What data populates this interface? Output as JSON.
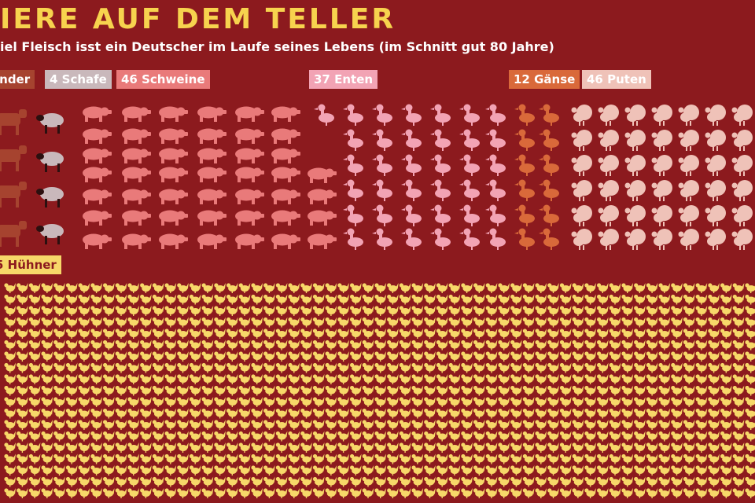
{
  "title": "IERE AUF DEM TELLER",
  "subtitle": "iel Fleisch isst ein Deutscher im Laufe seines Lebens (im Schnitt gut 80 Jahre)",
  "colors": {
    "background": "#8c1a1e",
    "title": "#f7d34e",
    "rinder": "#a6432f",
    "schafe": "#c9b8bb",
    "schweine": "#e97a7a",
    "enten": "#f2a3b4",
    "gaense": "#d9693a",
    "puten": "#efc2b8",
    "huehner": "#f7d869"
  },
  "groups": [
    {
      "key": "rinder",
      "label": "inder",
      "icon": "cow-icon"
    },
    {
      "key": "schafe",
      "label": "4 Schafe",
      "count": 4,
      "icon": "sheep-icon"
    },
    {
      "key": "schweine",
      "label": "46 Schweine",
      "count": 46,
      "icon": "pig-icon"
    },
    {
      "key": "enten",
      "label": "37 Enten",
      "count": 37,
      "icon": "duck-icon"
    },
    {
      "key": "gaense",
      "label": "12 Gänse",
      "count": 12,
      "icon": "goose-icon"
    },
    {
      "key": "puten",
      "label": "46 Puten",
      "count": 46,
      "icon": "turkey-icon"
    },
    {
      "key": "huehner",
      "label": "5 Hühner",
      "icon": "chicken-icon"
    }
  ]
}
